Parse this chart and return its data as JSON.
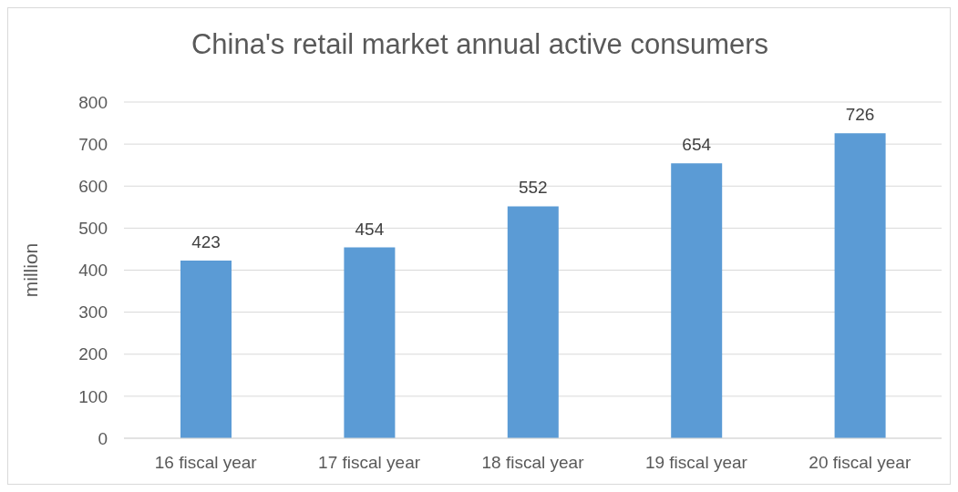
{
  "chart_data": {
    "type": "bar",
    "title": "China's retail market annual active consumers",
    "ylabel": "million",
    "categories": [
      "16 fiscal year",
      "17 fiscal year",
      "18 fiscal year",
      "19 fiscal year",
      "20 fiscal year"
    ],
    "values": [
      423,
      454,
      552,
      654,
      726
    ],
    "color": "#5b9bd5",
    "ylim": [
      0,
      800
    ],
    "yticks": [
      0,
      100,
      200,
      300,
      400,
      500,
      600,
      700,
      800
    ],
    "grid": "y",
    "data_labels": true,
    "legend": false
  }
}
